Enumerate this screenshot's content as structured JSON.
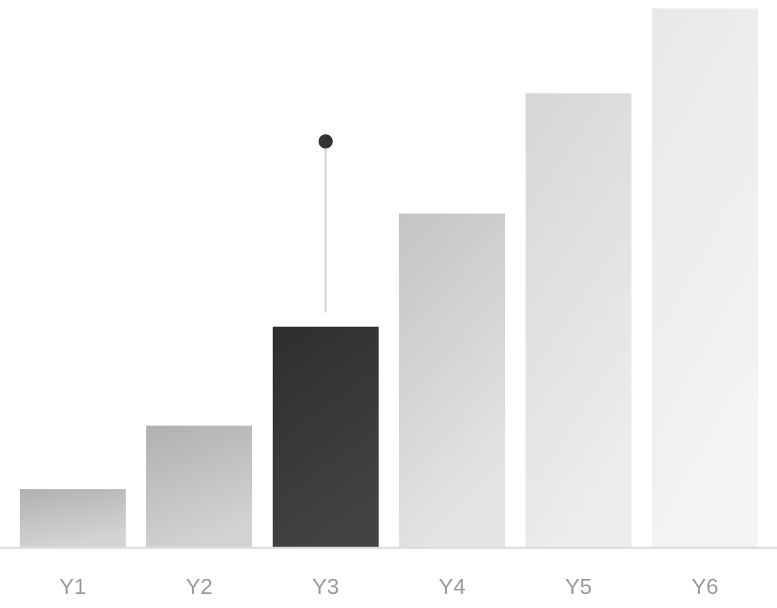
{
  "chart_data": {
    "type": "bar",
    "categories": [
      "Y1",
      "Y2",
      "Y3",
      "Y4",
      "Y5",
      "Y6"
    ],
    "values": [
      83,
      173,
      313,
      473,
      643,
      763
    ],
    "ylim": [
      0,
      765
    ],
    "highlighted_category": "Y3",
    "highlight_color": "#333333",
    "bar_gradients": [
      [
        "#b0b0b0",
        "#d4d4d4"
      ],
      [
        "#b0b0b0",
        "#d2d2d2"
      ],
      [
        "#2e2e2e",
        "#424242"
      ],
      [
        "#c4c4c4",
        "#e4e4e4"
      ],
      [
        "#d6d6d6",
        "#ececec"
      ],
      [
        "#e8e8e8",
        "#f4f4f4"
      ]
    ],
    "axis_color": "#dddddd",
    "marker_color": "#333333",
    "marker_line_color": "#d6d6d6",
    "tick_label_color": "#9a9a9a",
    "grid": false,
    "legend": "none"
  }
}
